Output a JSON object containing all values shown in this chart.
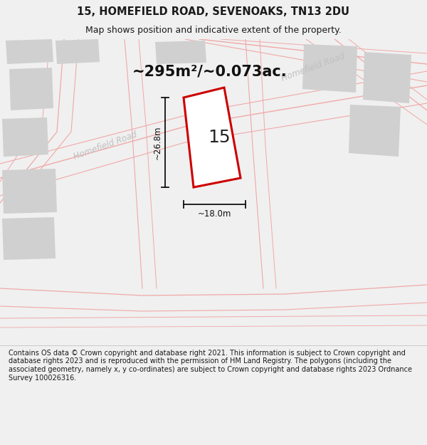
{
  "title": "15, HOMEFIELD ROAD, SEVENOAKS, TN13 2DU",
  "subtitle": "Map shows position and indicative extent of the property.",
  "area_label": "~295m²/~0.073ac.",
  "number_label": "15",
  "width_label": "~18.0m",
  "height_label": "~26.8m",
  "footer": "Contains OS data © Crown copyright and database right 2021. This information is subject to Crown copyright and database rights 2023 and is reproduced with the permission of HM Land Registry. The polygons (including the associated geometry, namely x, y co-ordinates) are subject to Crown copyright and database rights 2023 Ordnance Survey 100026316.",
  "bg_color": "#f0f0f0",
  "map_bg": "#ffffff",
  "road_color": "#f0a8a8",
  "building_color": "#d0d0d0",
  "plot_edge_color": "#cc0000",
  "plot_fill": "#ffffff",
  "dim_color": "#111111",
  "road_label_color": "#c0c0c0",
  "title_fontsize": 10.5,
  "subtitle_fontsize": 9,
  "area_fontsize": 15,
  "number_fontsize": 18,
  "dim_fontsize": 8.5,
  "footer_fontsize": 7,
  "road_label_fontsize": 8.5
}
